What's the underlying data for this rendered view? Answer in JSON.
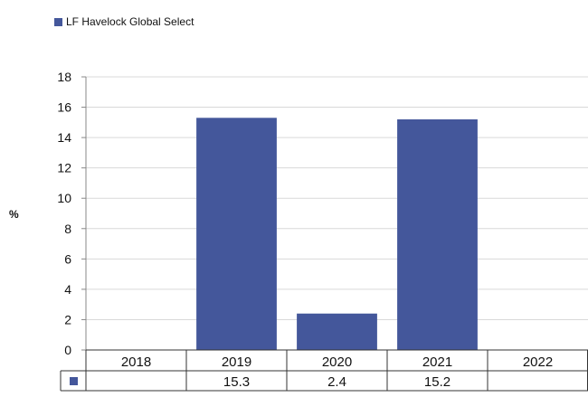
{
  "chart_data": {
    "type": "bar",
    "categories": [
      "2018",
      "2019",
      "2020",
      "2021",
      "2022"
    ],
    "series": [
      {
        "name": "LF Havelock Global Select",
        "values": [
          null,
          15.3,
          2.4,
          15.2,
          null
        ],
        "color": "#44579b"
      }
    ],
    "table_values": [
      "",
      "15.3",
      "2.4",
      "15.2",
      ""
    ],
    "ylabel": "%",
    "ylim": [
      0,
      18
    ],
    "yticks": [
      0,
      2,
      4,
      6,
      8,
      10,
      12,
      14,
      16,
      18
    ],
    "grid": true,
    "legend_position": "top-left"
  }
}
